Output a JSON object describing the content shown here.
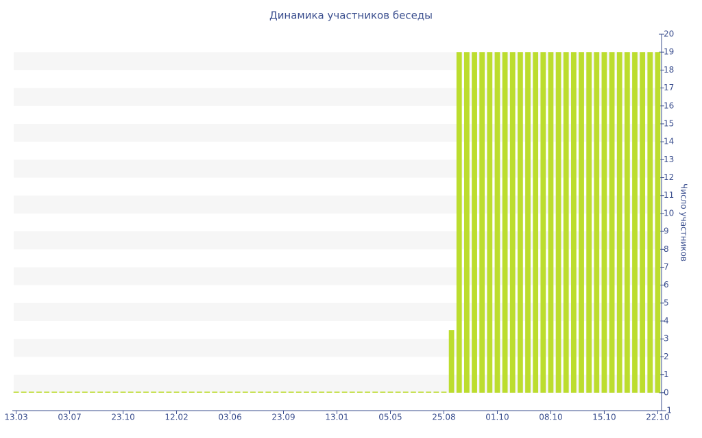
{
  "chart_data": {
    "type": "bar",
    "title": "Динамика участников беседы",
    "y_label": "Число участников",
    "categories": [
      "13.03",
      null,
      null,
      null,
      null,
      null,
      null,
      "03.07",
      null,
      null,
      null,
      null,
      null,
      null,
      "23.10",
      null,
      null,
      null,
      null,
      null,
      null,
      "12.02",
      null,
      null,
      null,
      null,
      null,
      null,
      "03.06",
      null,
      null,
      null,
      null,
      null,
      null,
      "23.09",
      null,
      null,
      null,
      null,
      null,
      null,
      "13.01",
      null,
      null,
      null,
      null,
      null,
      null,
      "05.05",
      null,
      null,
      null,
      null,
      null,
      null,
      "25.08",
      null,
      null,
      null,
      null,
      null,
      null,
      "01.10",
      null,
      null,
      null,
      null,
      null,
      null,
      "08.10",
      null,
      null,
      null,
      null,
      null,
      null,
      "15.10",
      null,
      null,
      null,
      null,
      null,
      null,
      "22.10"
    ],
    "values": [
      0,
      0,
      0,
      0,
      0,
      0,
      0,
      0,
      0,
      0,
      0,
      0,
      0,
      0,
      0,
      0,
      0,
      0,
      0,
      0,
      0,
      0,
      0,
      0,
      0,
      0,
      0,
      0,
      0,
      0,
      0,
      0,
      0,
      0,
      0,
      0,
      0,
      0,
      0,
      0,
      0,
      0,
      0,
      0,
      0,
      0,
      0,
      0,
      0,
      0,
      0,
      0,
      0,
      0,
      0,
      0,
      0,
      3.5,
      19,
      19,
      19,
      19,
      19,
      19,
      19,
      19,
      19,
      19,
      19,
      19,
      19,
      19,
      19,
      19,
      19,
      19,
      19,
      19,
      19,
      19,
      19,
      19,
      19,
      19,
      19
    ],
    "color": "#bcdd2e",
    "ylim": [
      -1,
      20
    ],
    "yticks": [
      -1,
      0,
      1,
      2,
      3,
      4,
      5,
      6,
      7,
      8,
      9,
      10,
      11,
      12,
      13,
      14,
      15,
      16,
      17,
      18,
      19,
      20
    ],
    "y_axis_side": "right",
    "grid": true
  }
}
